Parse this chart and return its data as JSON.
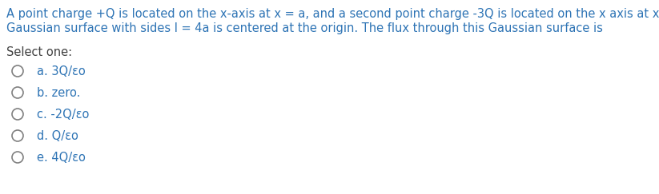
{
  "title_line1": "A point charge +Q is located on the x-axis at x = a, and a second point charge -3Q is located on the x axis at x = -a. A cubic",
  "title_line2": "Gaussian surface with sides l = 4a is centered at the origin. The flux through this Gaussian surface is",
  "select_label": "Select one:",
  "options": [
    "a. 3Q/εo",
    "b. zero.",
    "c. -2Q/εo",
    "d. Q/εo",
    "e. 4Q/εo"
  ],
  "title_color": "#2e74b5",
  "select_color": "#404040",
  "option_text_color": "#2e74b5",
  "circle_color": "#808080",
  "bg_color": "#ffffff",
  "font_size_title": 10.5,
  "font_size_select": 10.5,
  "font_size_options": 10.5
}
